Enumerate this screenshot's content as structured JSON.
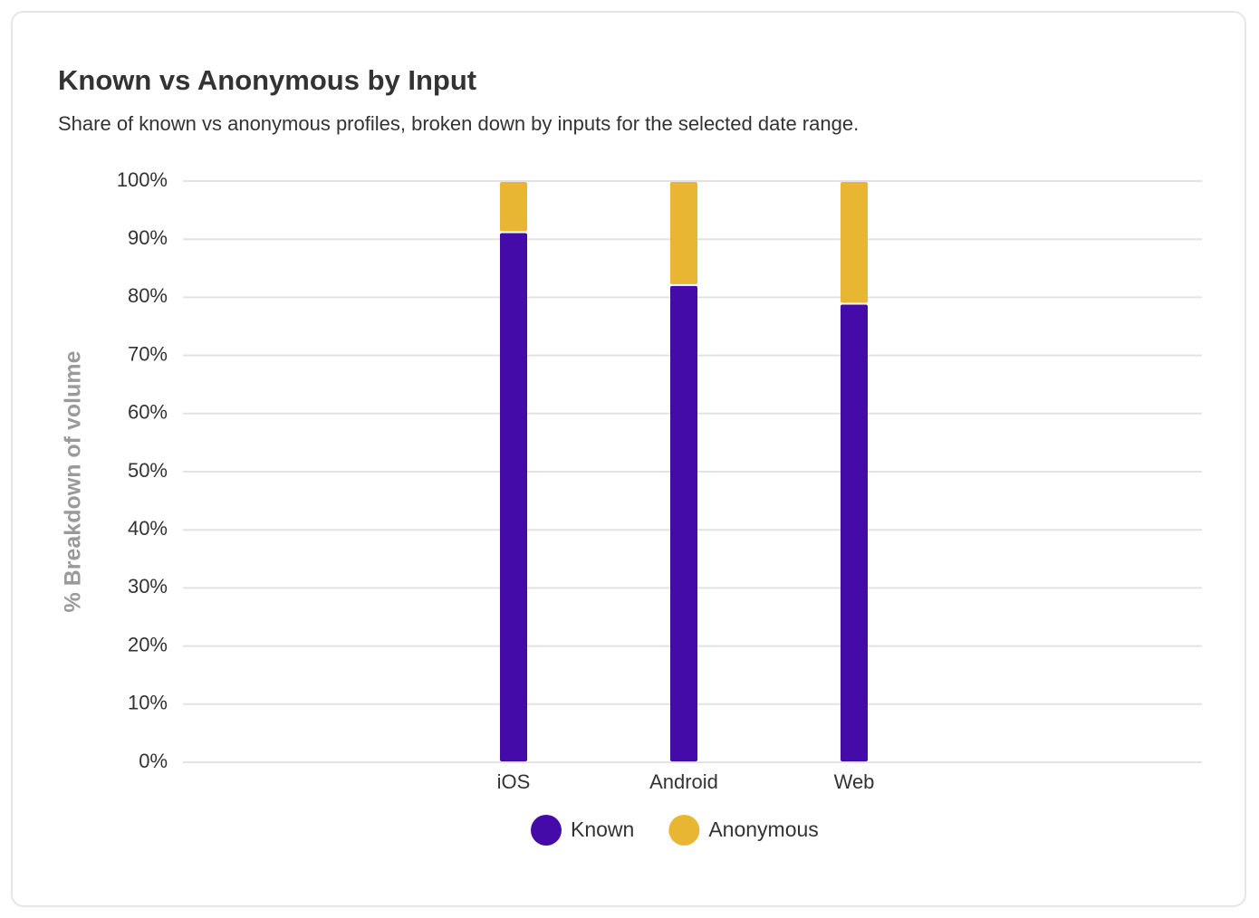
{
  "chart_data": {
    "type": "stacked-bar",
    "title": "Known vs Anonymous by Input",
    "subtitle": "Share of known vs anonymous profiles, broken down by inputs for the selected date range.",
    "y_label": "% Breakdown of volume",
    "categories": [
      "iOS",
      "Android",
      "Web"
    ],
    "series": [
      {
        "name": "Known",
        "color": "#440ba8",
        "values": [
          91.2,
          82.1,
          78.9
        ]
      },
      {
        "name": "Anonymous",
        "color": "#e9b634",
        "values": [
          8.8,
          17.9,
          21.1
        ]
      }
    ],
    "ylim": [
      0,
      100
    ],
    "yticks": [
      {
        "value": 0,
        "label": "0%"
      },
      {
        "value": 10,
        "label": "10%"
      },
      {
        "value": 20,
        "label": "20%"
      },
      {
        "value": 30,
        "label": "30%"
      },
      {
        "value": 40,
        "label": "40%"
      },
      {
        "value": 50,
        "label": "50%"
      },
      {
        "value": 60,
        "label": "60%"
      },
      {
        "value": 70,
        "label": "70%"
      },
      {
        "value": 80,
        "label": "80%"
      },
      {
        "value": 90,
        "label": "90%"
      },
      {
        "value": 100,
        "label": "100%"
      }
    ],
    "grid": true,
    "legend": "bottom"
  }
}
